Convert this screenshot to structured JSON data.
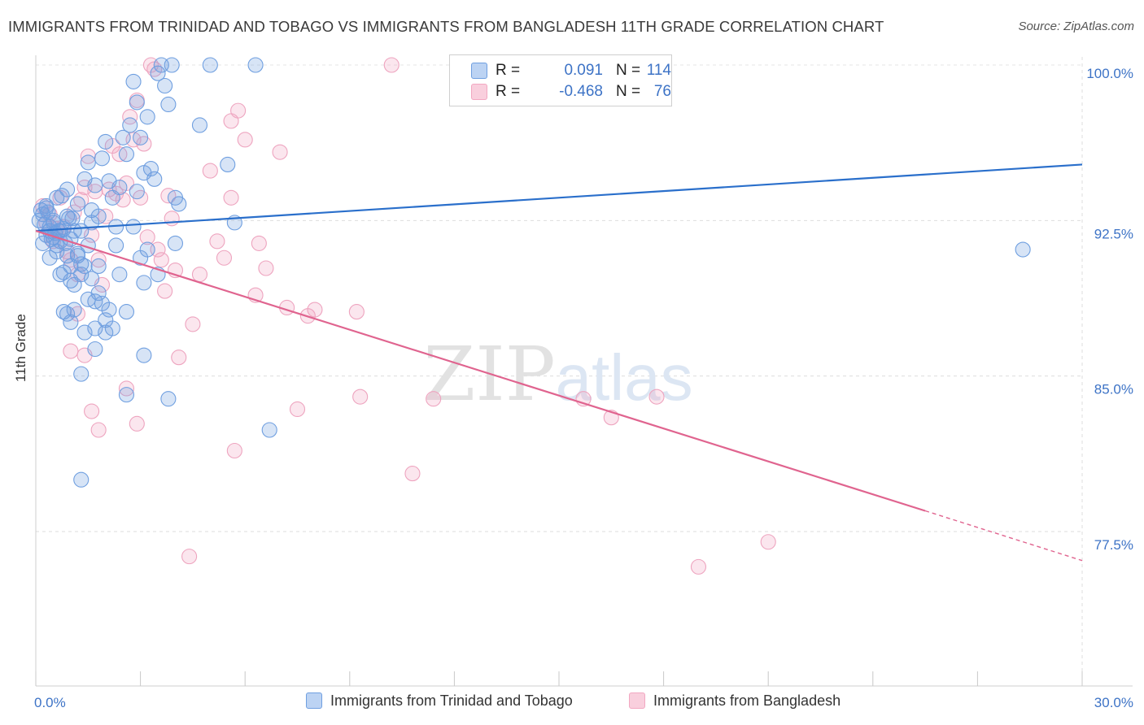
{
  "title": "IMMIGRANTS FROM TRINIDAD AND TOBAGO VS IMMIGRANTS FROM BANGLADESH 11TH GRADE CORRELATION CHART",
  "source": "Source: ZipAtlas.com",
  "watermark": "ZIPatlas",
  "colors": {
    "blue": "#6f9fe0",
    "blue_line": "#2a6fcb",
    "pink": "#f2a7c1",
    "pink_line": "#e0648f",
    "tick_text": "#3d73c6"
  },
  "legend": {
    "rows": [
      {
        "r_label": "R =",
        "r_value": "0.091",
        "n_label": "N =",
        "n_value": "114"
      },
      {
        "r_label": "R =",
        "r_value": "-0.468",
        "n_label": "N =",
        "n_value": "76"
      }
    ]
  },
  "bottom_legend": [
    "Immigrants from Trinidad and Tobago",
    "Immigrants from Bangladesh"
  ],
  "chart_data": {
    "type": "scatter",
    "title": "IMMIGRANTS FROM TRINIDAD AND TOBAGO VS IMMIGRANTS FROM BANGLADESH 11TH GRADE CORRELATION CHART",
    "xlabel": "",
    "ylabel": "11th Grade",
    "xlim": [
      0,
      30
    ],
    "ylim": [
      71,
      101
    ],
    "x_tick_labels": [
      "0.0%",
      "30.0%"
    ],
    "y_ticks": [
      77.5,
      85.0,
      92.5,
      100.0
    ],
    "y_tick_labels": [
      "77.5%",
      "85.0%",
      "92.5%",
      "100.0%"
    ],
    "grid": true,
    "legend_position": "top-center",
    "series": [
      {
        "name": "Immigrants from Trinidad and Tobago",
        "color": "#6f9fe0",
        "trend": {
          "x": [
            0,
            30
          ],
          "y": [
            92.0,
            95.2
          ],
          "r": 0.091,
          "n": 114
        },
        "points": [
          [
            0.1,
            92.5
          ],
          [
            0.15,
            93.0
          ],
          [
            0.2,
            92.8
          ],
          [
            0.25,
            92.3
          ],
          [
            0.3,
            91.8
          ],
          [
            0.35,
            92.9
          ],
          [
            0.4,
            92.2
          ],
          [
            0.45,
            91.6
          ],
          [
            0.5,
            92.4
          ],
          [
            0.55,
            91.9
          ],
          [
            0.6,
            93.6
          ],
          [
            0.65,
            92.0
          ],
          [
            0.7,
            91.5
          ],
          [
            0.75,
            93.7
          ],
          [
            0.8,
            92.1
          ],
          [
            0.85,
            91.4
          ],
          [
            0.9,
            94.0
          ],
          [
            0.95,
            92.6
          ],
          [
            1.0,
            91.6
          ],
          [
            1.05,
            92.6
          ],
          [
            0.2,
            91.4
          ],
          [
            0.3,
            93.2
          ],
          [
            0.4,
            92.0
          ],
          [
            0.5,
            91.7
          ],
          [
            0.6,
            91.0
          ],
          [
            0.7,
            92.0
          ],
          [
            0.8,
            90.0
          ],
          [
            0.9,
            88.0
          ],
          [
            1.0,
            90.3
          ],
          [
            1.1,
            89.4
          ],
          [
            1.2,
            90.8
          ],
          [
            1.3,
            89.9
          ],
          [
            1.4,
            90.3
          ],
          [
            1.5,
            91.3
          ],
          [
            1.6,
            89.7
          ],
          [
            1.7,
            88.6
          ],
          [
            1.8,
            89.0
          ],
          [
            1.9,
            88.5
          ],
          [
            2.0,
            87.7
          ],
          [
            2.1,
            88.2
          ],
          [
            1.2,
            93.3
          ],
          [
            1.3,
            92.0
          ],
          [
            1.4,
            94.5
          ],
          [
            1.5,
            95.3
          ],
          [
            1.6,
            93.0
          ],
          [
            1.7,
            94.2
          ],
          [
            1.8,
            92.7
          ],
          [
            1.9,
            95.5
          ],
          [
            2.0,
            96.3
          ],
          [
            2.1,
            94.4
          ],
          [
            2.2,
            93.6
          ],
          [
            2.3,
            92.2
          ],
          [
            2.4,
            94.1
          ],
          [
            2.5,
            96.5
          ],
          [
            2.6,
            95.7
          ],
          [
            2.7,
            97.1
          ],
          [
            2.8,
            99.2
          ],
          [
            2.9,
            98.2
          ],
          [
            3.0,
            96.5
          ],
          [
            3.1,
            94.8
          ],
          [
            3.2,
            97.5
          ],
          [
            3.3,
            95.0
          ],
          [
            3.4,
            94.5
          ],
          [
            3.5,
            99.6
          ],
          [
            3.6,
            100.0
          ],
          [
            3.7,
            99.0
          ],
          [
            3.8,
            98.1
          ],
          [
            3.9,
            100.0
          ],
          [
            4.0,
            93.6
          ],
          [
            4.1,
            93.3
          ],
          [
            4.7,
            97.1
          ],
          [
            5.0,
            100.0
          ],
          [
            5.5,
            95.2
          ],
          [
            5.7,
            92.4
          ],
          [
            6.3,
            100.0
          ],
          [
            1.2,
            90.9
          ],
          [
            1.3,
            90.4
          ],
          [
            1.5,
            88.7
          ],
          [
            1.7,
            87.3
          ],
          [
            1.8,
            90.3
          ],
          [
            2.2,
            87.3
          ],
          [
            2.3,
            91.3
          ],
          [
            2.4,
            89.9
          ],
          [
            2.6,
            88.1
          ],
          [
            2.8,
            92.2
          ],
          [
            2.9,
            93.9
          ],
          [
            3.0,
            90.7
          ],
          [
            3.1,
            89.5
          ],
          [
            3.2,
            91.1
          ],
          [
            3.5,
            89.9
          ],
          [
            4.0,
            91.4
          ],
          [
            0.9,
            92.7
          ],
          [
            0.7,
            89.9
          ],
          [
            0.8,
            88.1
          ],
          [
            1.0,
            89.6
          ],
          [
            1.1,
            88.2
          ],
          [
            1.3,
            85.1
          ],
          [
            1.4,
            87.1
          ],
          [
            1.7,
            86.3
          ],
          [
            2.6,
            84.1
          ],
          [
            3.1,
            86.0
          ],
          [
            3.8,
            83.9
          ],
          [
            1.3,
            80.0
          ],
          [
            6.7,
            82.4
          ],
          [
            28.3,
            91.1
          ],
          [
            0.3,
            93.1
          ],
          [
            0.5,
            92.5
          ],
          [
            0.6,
            91.3
          ],
          [
            0.9,
            90.8
          ],
          [
            1.1,
            92.0
          ],
          [
            2.0,
            87.1
          ],
          [
            0.4,
            90.7
          ],
          [
            1.6,
            92.4
          ],
          [
            1.0,
            87.6
          ]
        ]
      },
      {
        "name": "Immigrants from Bangladesh",
        "color": "#f2a7c1",
        "trend": {
          "x": [
            0,
            25.5,
            30
          ],
          "y": [
            92.0,
            78.5,
            76.1
          ],
          "r": -0.468,
          "n": 76
        },
        "points": [
          [
            0.2,
            93.2
          ],
          [
            0.3,
            92.4
          ],
          [
            0.4,
            92.8
          ],
          [
            0.5,
            91.5
          ],
          [
            0.6,
            92.1
          ],
          [
            0.7,
            93.6
          ],
          [
            0.8,
            92.2
          ],
          [
            0.9,
            91.0
          ],
          [
            1.0,
            90.6
          ],
          [
            1.1,
            92.9
          ],
          [
            1.2,
            89.9
          ],
          [
            1.3,
            93.5
          ],
          [
            1.4,
            94.1
          ],
          [
            1.5,
            95.6
          ],
          [
            1.6,
            91.8
          ],
          [
            1.7,
            93.9
          ],
          [
            1.8,
            90.6
          ],
          [
            1.9,
            89.4
          ],
          [
            2.0,
            92.7
          ],
          [
            2.1,
            94.0
          ],
          [
            2.2,
            96.1
          ],
          [
            2.3,
            93.8
          ],
          [
            2.4,
            95.7
          ],
          [
            2.5,
            93.5
          ],
          [
            2.6,
            94.3
          ],
          [
            2.7,
            97.5
          ],
          [
            2.8,
            96.4
          ],
          [
            2.9,
            98.3
          ],
          [
            3.0,
            93.6
          ],
          [
            3.1,
            96.2
          ],
          [
            3.2,
            91.7
          ],
          [
            3.3,
            100.0
          ],
          [
            3.4,
            99.8
          ],
          [
            3.5,
            91.1
          ],
          [
            3.6,
            90.6
          ],
          [
            3.7,
            89.1
          ],
          [
            3.8,
            93.7
          ],
          [
            3.9,
            92.6
          ],
          [
            4.0,
            90.1
          ],
          [
            4.5,
            87.5
          ],
          [
            4.7,
            89.9
          ],
          [
            5.0,
            94.9
          ],
          [
            5.2,
            91.5
          ],
          [
            5.4,
            90.7
          ],
          [
            5.6,
            93.6
          ],
          [
            6.0,
            96.4
          ],
          [
            6.3,
            88.9
          ],
          [
            6.4,
            91.4
          ],
          [
            6.6,
            90.2
          ],
          [
            7.0,
            95.8
          ],
          [
            7.2,
            88.3
          ],
          [
            7.8,
            87.9
          ],
          [
            8.0,
            88.2
          ],
          [
            9.2,
            88.1
          ],
          [
            9.3,
            84.0
          ],
          [
            10.2,
            100.0
          ],
          [
            10.8,
            80.3
          ],
          [
            11.4,
            83.9
          ],
          [
            5.6,
            97.3
          ],
          [
            5.8,
            97.8
          ],
          [
            15.7,
            83.9
          ],
          [
            16.5,
            83.0
          ],
          [
            17.8,
            84.0
          ],
          [
            19.0,
            75.8
          ],
          [
            21.0,
            77.0
          ],
          [
            1.2,
            88.0
          ],
          [
            1.4,
            86.0
          ],
          [
            1.6,
            83.3
          ],
          [
            1.8,
            82.4
          ],
          [
            2.6,
            84.4
          ],
          [
            2.9,
            82.7
          ],
          [
            4.1,
            85.9
          ],
          [
            4.4,
            76.3
          ],
          [
            5.7,
            81.4
          ],
          [
            7.5,
            83.4
          ],
          [
            1.0,
            86.2
          ]
        ]
      }
    ]
  }
}
